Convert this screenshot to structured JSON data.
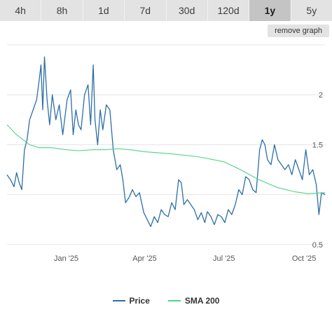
{
  "timeframes": [
    "4h",
    "8h",
    "1d",
    "7d",
    "30d",
    "120d",
    "1y",
    "5y"
  ],
  "active_timeframe": "1y",
  "remove_graph_label": "remove graph",
  "chart_data": {
    "type": "line",
    "title": "",
    "xlabel": "",
    "ylabel": "",
    "x_range": [
      "2024-10-25",
      "2025-10-25"
    ],
    "x_ticks": [
      {
        "date": "2025-01-01",
        "label": "Jan '25"
      },
      {
        "date": "2025-04-01",
        "label": "Apr '25"
      },
      {
        "date": "2025-07-01",
        "label": "Jul '25"
      },
      {
        "date": "2025-10-01",
        "label": "Oct '25"
      }
    ],
    "y_ticks": [
      0.5,
      1.5,
      2
    ],
    "ylim": [
      0.45,
      2.5
    ],
    "y_axis_side": "right",
    "grid": "horizontal",
    "legend": "bottom-center",
    "series": [
      {
        "name": "Price",
        "color": "#2c6fa6",
        "points": [
          [
            "2024-10-25",
            1.2
          ],
          [
            "2024-10-29",
            1.15
          ],
          [
            "2024-11-02",
            1.08
          ],
          [
            "2024-11-05",
            1.22
          ],
          [
            "2024-11-08",
            1.12
          ],
          [
            "2024-11-11",
            1.05
          ],
          [
            "2024-11-14",
            1.45
          ],
          [
            "2024-11-17",
            1.55
          ],
          [
            "2024-11-20",
            1.75
          ],
          [
            "2024-11-24",
            1.85
          ],
          [
            "2024-11-28",
            1.95
          ],
          [
            "2024-12-01",
            2.15
          ],
          [
            "2024-12-03",
            2.3
          ],
          [
            "2024-12-05",
            1.85
          ],
          [
            "2024-12-07",
            2.38
          ],
          [
            "2024-12-10",
            1.95
          ],
          [
            "2024-12-13",
            1.7
          ],
          [
            "2024-12-16",
            2.0
          ],
          [
            "2024-12-20",
            1.75
          ],
          [
            "2024-12-24",
            1.9
          ],
          [
            "2024-12-28",
            1.6
          ],
          [
            "2025-01-02",
            1.95
          ],
          [
            "2025-01-06",
            2.05
          ],
          [
            "2025-01-09",
            1.6
          ],
          [
            "2025-01-12",
            1.85
          ],
          [
            "2025-01-15",
            1.7
          ],
          [
            "2025-01-18",
            1.65
          ],
          [
            "2025-01-22",
            2.0
          ],
          [
            "2025-01-26",
            2.1
          ],
          [
            "2025-01-29",
            1.7
          ],
          [
            "2025-02-01",
            2.3
          ],
          [
            "2025-02-03",
            1.75
          ],
          [
            "2025-02-06",
            1.5
          ],
          [
            "2025-02-09",
            1.85
          ],
          [
            "2025-02-12",
            1.65
          ],
          [
            "2025-02-16",
            1.9
          ],
          [
            "2025-02-20",
            1.85
          ],
          [
            "2025-02-24",
            1.45
          ],
          [
            "2025-02-28",
            1.25
          ],
          [
            "2025-03-04",
            1.3
          ],
          [
            "2025-03-07",
            1.15
          ],
          [
            "2025-03-10",
            0.92
          ],
          [
            "2025-03-14",
            0.97
          ],
          [
            "2025-03-18",
            1.05
          ],
          [
            "2025-03-22",
            0.98
          ],
          [
            "2025-03-26",
            1.02
          ],
          [
            "2025-03-31",
            0.82
          ],
          [
            "2025-04-04",
            0.75
          ],
          [
            "2025-04-08",
            0.68
          ],
          [
            "2025-04-12",
            0.78
          ],
          [
            "2025-04-16",
            0.72
          ],
          [
            "2025-04-20",
            0.85
          ],
          [
            "2025-04-24",
            0.8
          ],
          [
            "2025-04-28",
            0.78
          ],
          [
            "2025-05-02",
            0.92
          ],
          [
            "2025-05-06",
            0.85
          ],
          [
            "2025-05-10",
            1.15
          ],
          [
            "2025-05-13",
            1.12
          ],
          [
            "2025-05-16",
            0.9
          ],
          [
            "2025-05-20",
            0.95
          ],
          [
            "2025-05-24",
            0.9
          ],
          [
            "2025-05-28",
            0.85
          ],
          [
            "2025-06-01",
            0.75
          ],
          [
            "2025-06-05",
            0.82
          ],
          [
            "2025-06-09",
            0.72
          ],
          [
            "2025-06-12",
            0.83
          ],
          [
            "2025-06-16",
            0.78
          ],
          [
            "2025-06-20",
            0.7
          ],
          [
            "2025-06-24",
            0.8
          ],
          [
            "2025-06-28",
            0.78
          ],
          [
            "2025-07-02",
            0.72
          ],
          [
            "2025-07-06",
            0.85
          ],
          [
            "2025-07-10",
            0.8
          ],
          [
            "2025-07-14",
            0.9
          ],
          [
            "2025-07-18",
            1.05
          ],
          [
            "2025-07-22",
            1.0
          ],
          [
            "2025-07-26",
            1.18
          ],
          [
            "2025-07-30",
            1.15
          ],
          [
            "2025-08-03",
            1.05
          ],
          [
            "2025-08-07",
            1.02
          ],
          [
            "2025-08-11",
            1.45
          ],
          [
            "2025-08-14",
            1.55
          ],
          [
            "2025-08-17",
            1.5
          ],
          [
            "2025-08-20",
            1.35
          ],
          [
            "2025-08-24",
            1.3
          ],
          [
            "2025-08-28",
            1.5
          ],
          [
            "2025-09-01",
            1.35
          ],
          [
            "2025-09-05",
            1.3
          ],
          [
            "2025-09-09",
            1.25
          ],
          [
            "2025-09-13",
            1.3
          ],
          [
            "2025-09-17",
            1.2
          ],
          [
            "2025-09-21",
            1.35
          ],
          [
            "2025-09-25",
            1.25
          ],
          [
            "2025-09-29",
            1.15
          ],
          [
            "2025-10-03",
            1.45
          ],
          [
            "2025-10-07",
            1.2
          ],
          [
            "2025-10-11",
            1.25
          ],
          [
            "2025-10-15",
            1.1
          ],
          [
            "2025-10-18",
            0.8
          ],
          [
            "2025-10-21",
            1.02
          ],
          [
            "2025-10-25",
            1.0
          ]
        ]
      },
      {
        "name": "SMA 200",
        "color": "#4fd488",
        "points": [
          [
            "2024-10-25",
            1.7
          ],
          [
            "2024-11-05",
            1.6
          ],
          [
            "2024-11-20",
            1.5
          ],
          [
            "2024-12-01",
            1.47
          ],
          [
            "2024-12-15",
            1.47
          ],
          [
            "2025-01-01",
            1.45
          ],
          [
            "2025-01-15",
            1.44
          ],
          [
            "2025-02-01",
            1.45
          ],
          [
            "2025-02-15",
            1.45
          ],
          [
            "2025-03-01",
            1.46
          ],
          [
            "2025-03-15",
            1.45
          ],
          [
            "2025-04-01",
            1.43
          ],
          [
            "2025-05-01",
            1.41
          ],
          [
            "2025-06-01",
            1.38
          ],
          [
            "2025-07-01",
            1.33
          ],
          [
            "2025-07-20",
            1.25
          ],
          [
            "2025-08-10",
            1.15
          ],
          [
            "2025-09-01",
            1.07
          ],
          [
            "2025-09-20",
            1.03
          ],
          [
            "2025-10-05",
            1.01
          ],
          [
            "2025-10-25",
            1.02
          ]
        ]
      }
    ]
  }
}
